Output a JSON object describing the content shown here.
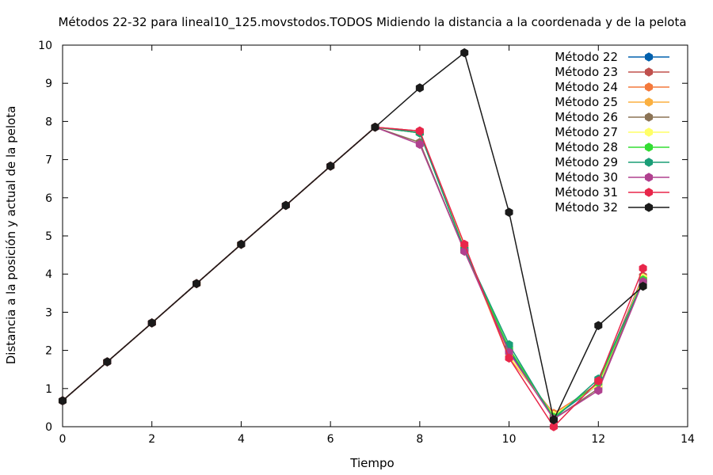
{
  "chart_data": {
    "type": "line",
    "title": "Métodos 22-32 para lineal10_125.movstodos.TODOS Midiendo la distancia a la coordenada y de la pelota",
    "xlabel": "Tiempo",
    "ylabel": "Distancia a la posición y actual de la pelota",
    "xlim": [
      0,
      14
    ],
    "ylim": [
      0,
      10
    ],
    "xticks": [
      "0",
      "2",
      "4",
      "6",
      "8",
      "10",
      "12",
      "14"
    ],
    "yticks": [
      "0",
      "1",
      "2",
      "3",
      "4",
      "5",
      "6",
      "7",
      "8",
      "9",
      "10"
    ],
    "grid": false,
    "legend_position": "top-right",
    "series": [
      {
        "name": "Método 22",
        "color": "#0060ad",
        "x": [
          0,
          1,
          2,
          3,
          4,
          5,
          6,
          7,
          8,
          9,
          10,
          11,
          12,
          13
        ],
        "y": [
          0.68,
          1.7,
          2.72,
          3.75,
          4.78,
          5.8,
          6.83,
          7.85,
          7.7,
          4.65,
          2.0,
          0.25,
          1.1,
          3.9
        ]
      },
      {
        "name": "Método 23",
        "color": "#c0504d",
        "x": [
          0,
          1,
          2,
          3,
          4,
          5,
          6,
          7,
          8,
          9,
          10,
          11,
          12,
          13
        ],
        "y": [
          0.68,
          1.7,
          2.72,
          3.75,
          4.78,
          5.8,
          6.83,
          7.85,
          7.75,
          4.7,
          1.85,
          0.3,
          1.15,
          3.95
        ]
      },
      {
        "name": "Método 24",
        "color": "#f4793b",
        "x": [
          0,
          1,
          2,
          3,
          4,
          5,
          6,
          7,
          8,
          9,
          10,
          11,
          12,
          13
        ],
        "y": [
          0.68,
          1.7,
          2.72,
          3.75,
          4.78,
          5.8,
          6.83,
          7.85,
          7.7,
          4.7,
          1.8,
          0.35,
          1.1,
          3.9
        ]
      },
      {
        "name": "Método 25",
        "color": "#fbb040",
        "x": [
          0,
          1,
          2,
          3,
          4,
          5,
          6,
          7,
          8,
          9,
          10,
          11,
          12,
          13
        ],
        "y": [
          0.68,
          1.7,
          2.72,
          3.75,
          4.78,
          5.8,
          6.83,
          7.85,
          7.7,
          4.7,
          1.85,
          0.3,
          1.1,
          3.9
        ]
      },
      {
        "name": "Método 26",
        "color": "#8b7355",
        "x": [
          0,
          1,
          2,
          3,
          4,
          5,
          6,
          7,
          8,
          9,
          10,
          11,
          12,
          13
        ],
        "y": [
          0.68,
          1.7,
          2.72,
          3.75,
          4.78,
          5.8,
          6.83,
          7.85,
          7.45,
          4.6,
          2.05,
          0.2,
          1.0,
          3.85
        ]
      },
      {
        "name": "Método 27",
        "color": "#ffff66",
        "x": [
          0,
          1,
          2,
          3,
          4,
          5,
          6,
          7,
          8,
          9,
          10,
          11,
          12,
          13
        ],
        "y": [
          0.68,
          1.7,
          2.72,
          3.75,
          4.78,
          5.8,
          6.83,
          7.85,
          7.7,
          4.7,
          1.85,
          0.3,
          1.1,
          3.9
        ]
      },
      {
        "name": "Método 28",
        "color": "#33dd33",
        "x": [
          0,
          1,
          2,
          3,
          4,
          5,
          6,
          7,
          8,
          9,
          10,
          11,
          12,
          13
        ],
        "y": [
          0.68,
          1.7,
          2.72,
          3.75,
          4.78,
          5.8,
          6.83,
          7.85,
          7.7,
          4.65,
          2.05,
          0.25,
          1.15,
          3.85
        ]
      },
      {
        "name": "Método 29",
        "color": "#1a9e77",
        "x": [
          0,
          1,
          2,
          3,
          4,
          5,
          6,
          7,
          8,
          9,
          10,
          11,
          12,
          13
        ],
        "y": [
          0.68,
          1.7,
          2.72,
          3.75,
          4.78,
          5.8,
          6.83,
          7.85,
          7.7,
          4.65,
          2.15,
          0.2,
          1.25,
          3.8
        ]
      },
      {
        "name": "Método 30",
        "color": "#b0408f",
        "x": [
          0,
          1,
          2,
          3,
          4,
          5,
          6,
          7,
          8,
          9,
          10,
          11,
          12,
          13
        ],
        "y": [
          0.68,
          1.7,
          2.72,
          3.75,
          4.78,
          5.8,
          6.83,
          7.85,
          7.4,
          4.6,
          1.95,
          0.2,
          0.95,
          3.8
        ]
      },
      {
        "name": "Método 31",
        "color": "#e8264a",
        "x": [
          0,
          1,
          2,
          3,
          4,
          5,
          6,
          7,
          8,
          9,
          10,
          11,
          12,
          13
        ],
        "y": [
          0.68,
          1.7,
          2.72,
          3.75,
          4.78,
          5.8,
          6.83,
          7.85,
          7.75,
          4.78,
          1.8,
          0.0,
          1.2,
          4.15
        ]
      },
      {
        "name": "Método 32",
        "color": "#1a1a1a",
        "x": [
          0,
          1,
          2,
          3,
          4,
          5,
          6,
          7,
          8,
          9,
          10,
          11,
          12,
          13
        ],
        "y": [
          0.68,
          1.7,
          2.72,
          3.75,
          4.78,
          5.8,
          6.83,
          7.85,
          8.88,
          9.8,
          5.62,
          0.18,
          2.65,
          3.68
        ]
      }
    ]
  }
}
